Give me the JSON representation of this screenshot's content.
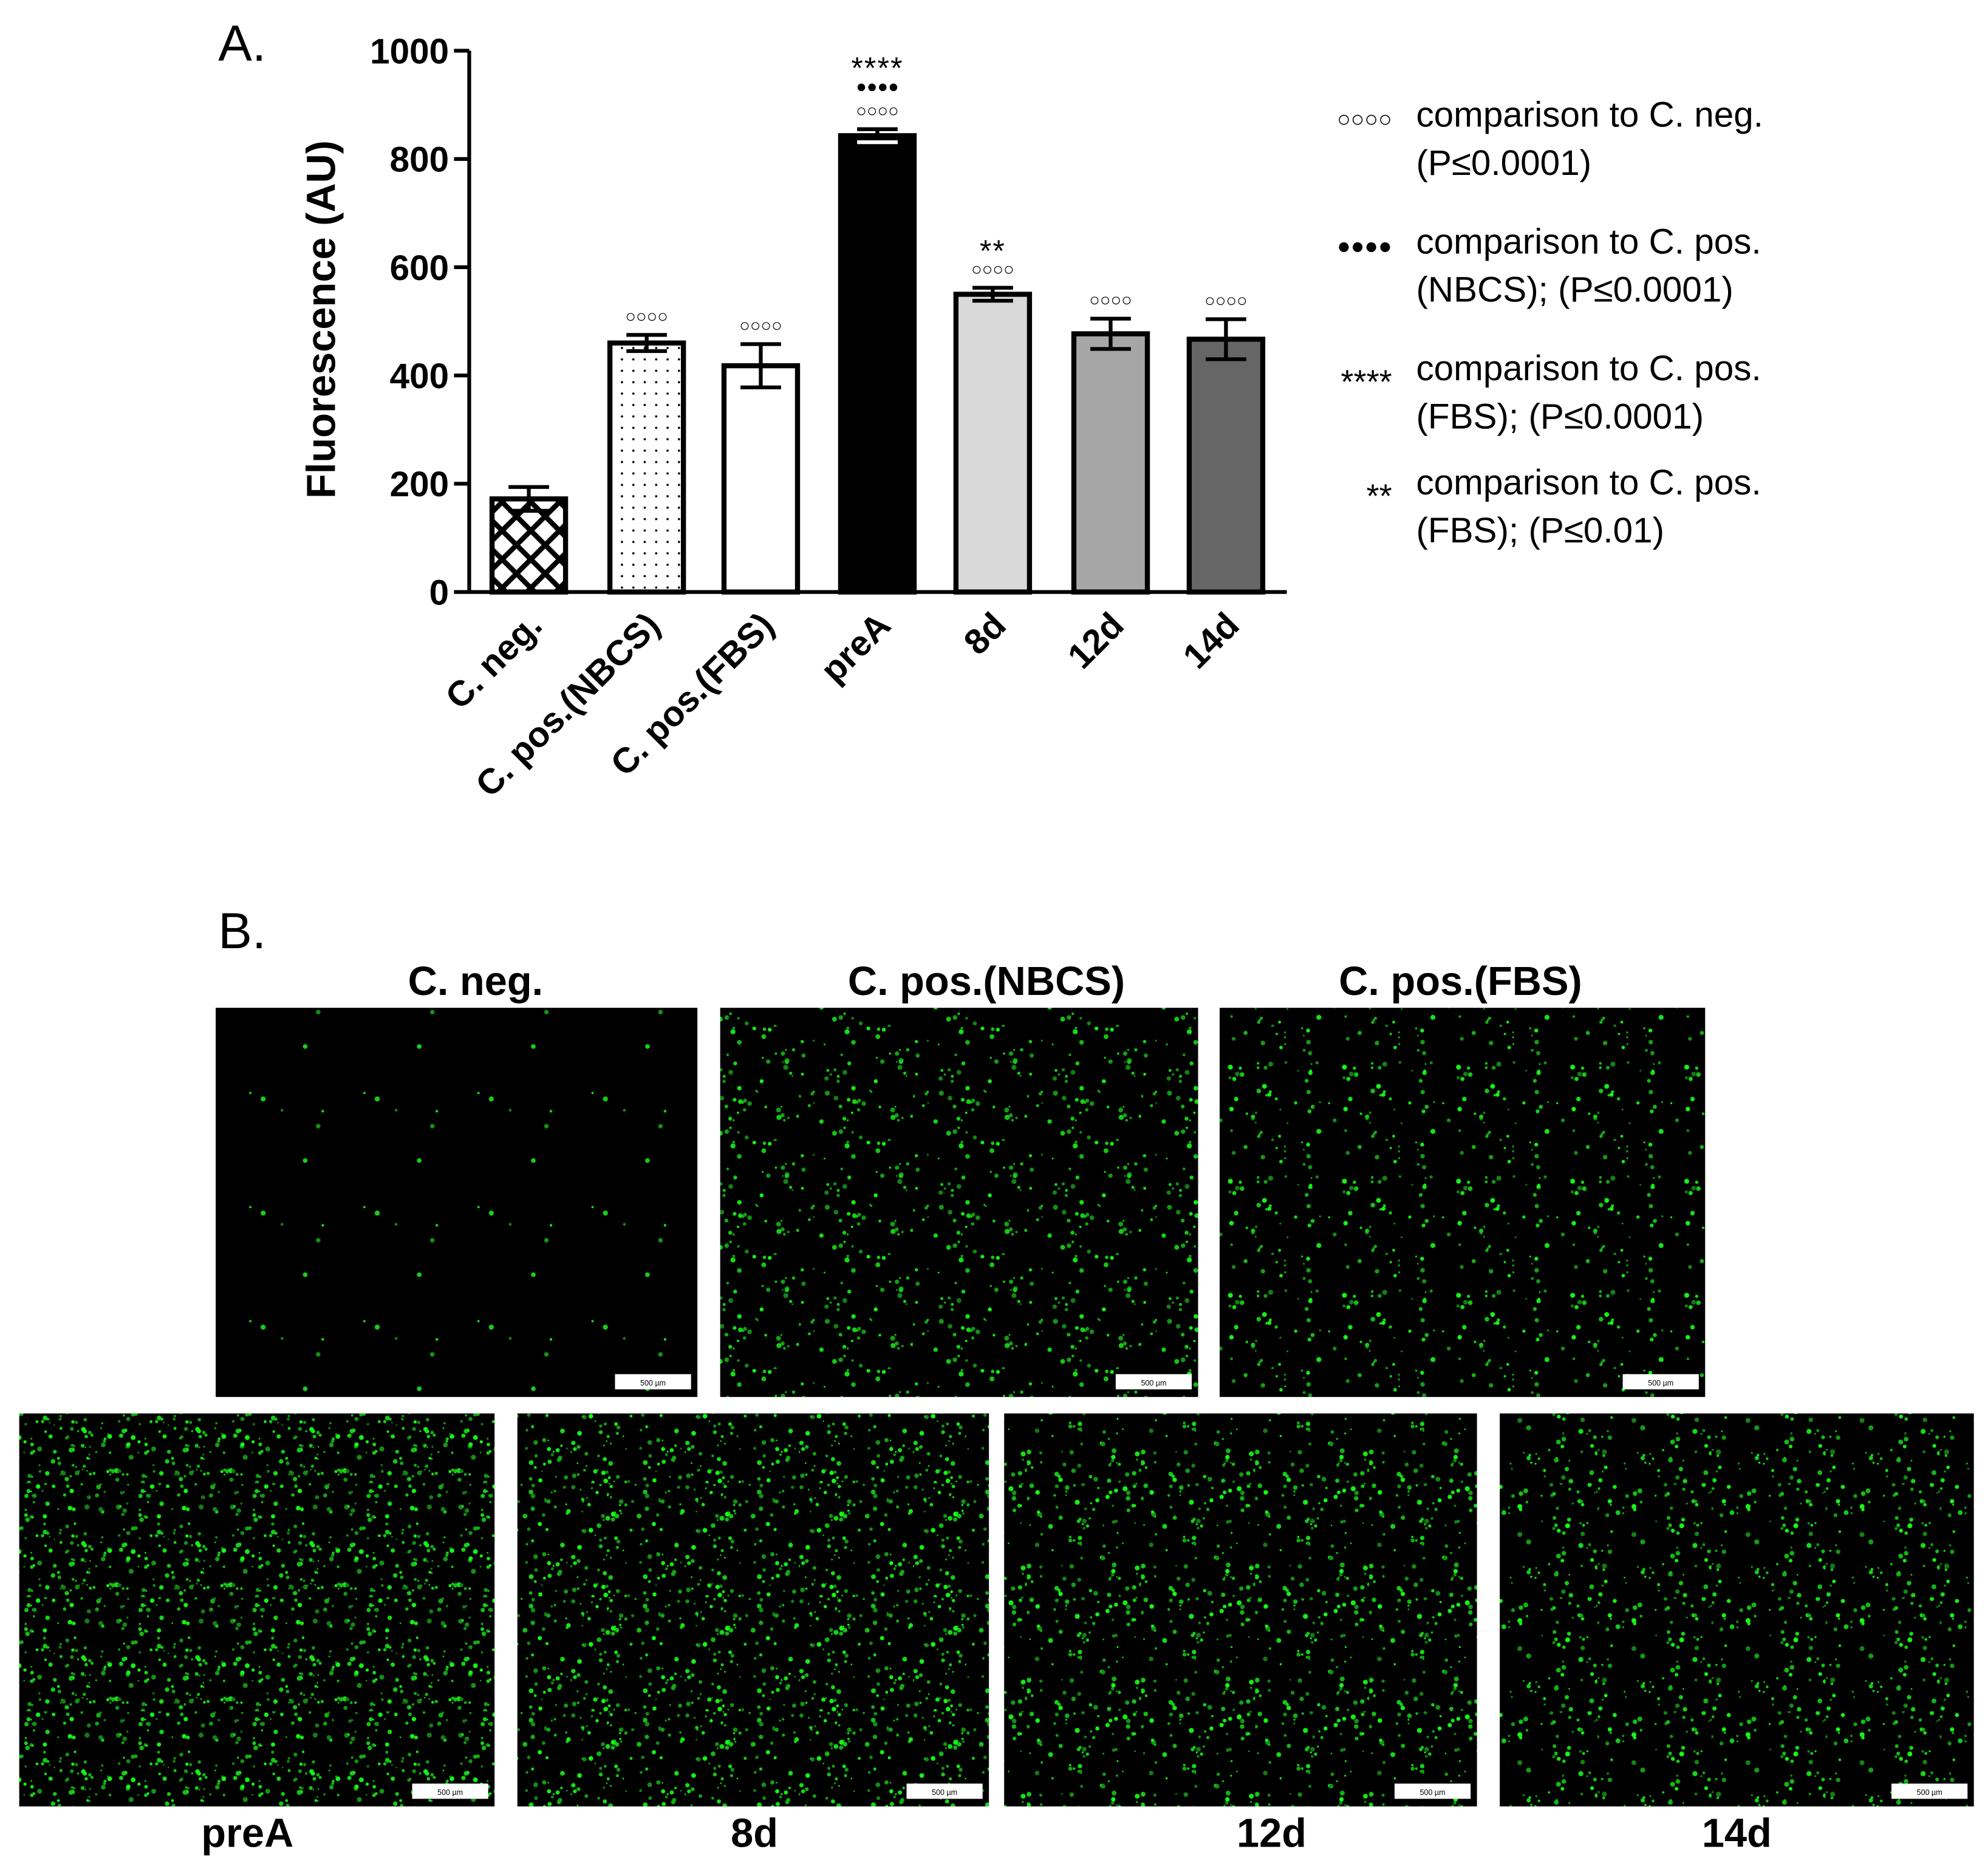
{
  "panel_a_label": "A.",
  "chart_data": {
    "type": "bar",
    "y_label": "Fluorescence (AU)",
    "categories": [
      "C. neg.",
      "C. pos.(NBCS)",
      "C. pos.(FBS)",
      "preA",
      "8d",
      "12d",
      "14d"
    ],
    "values": [
      172,
      460,
      418,
      843,
      550,
      477,
      467
    ],
    "errors": [
      22,
      15,
      40,
      12,
      12,
      28,
      37
    ],
    "colors": [
      "#ffffff",
      "#ffffff",
      "#ffffff",
      "#000000",
      "#d9d9d9",
      "#a6a6a6",
      "#666666"
    ],
    "patterns": [
      "crosshatch",
      "dots",
      null,
      null,
      null,
      null,
      null
    ],
    "annotations": [
      [],
      [
        "○○○○"
      ],
      [
        "○○○○"
      ],
      [
        "○○○○",
        "●●●●",
        "****"
      ],
      [
        "○○○○",
        "**"
      ],
      [
        "○○○○"
      ],
      [
        "○○○○"
      ]
    ],
    "ylim": [
      0,
      1000
    ],
    "yticks": [
      0,
      200,
      400,
      600,
      800,
      1000
    ],
    "legend": [
      {
        "symbol": "○○○○",
        "lines": [
          "comparison to C. neg.",
          "(P≤0.0001)"
        ]
      },
      {
        "symbol": "●●●●",
        "lines": [
          "comparison to C. pos.",
          "(NBCS); (P≤0.0001)"
        ]
      },
      {
        "symbol": "****",
        "lines": [
          "comparison to C. pos.",
          "(FBS); (P≤0.0001)"
        ]
      },
      {
        "symbol": "**",
        "lines": [
          "comparison to C. pos.",
          "(FBS); (P≤0.01)"
        ]
      }
    ]
  },
  "panel_b": {
    "label": "B.",
    "images": [
      {
        "label": "C. neg.",
        "scale_bar": "500 µm"
      },
      {
        "label": "C. pos.(NBCS)",
        "scale_bar": "500 µm"
      },
      {
        "label": "C. pos.(FBS)",
        "scale_bar": "500 µm"
      },
      {
        "label": "preA",
        "scale_bar": "500 µm"
      },
      {
        "label": "8d",
        "scale_bar": "500 µm"
      },
      {
        "label": "12d",
        "scale_bar": "500 µm"
      },
      {
        "label": "14d",
        "scale_bar": "500 µm"
      }
    ]
  }
}
